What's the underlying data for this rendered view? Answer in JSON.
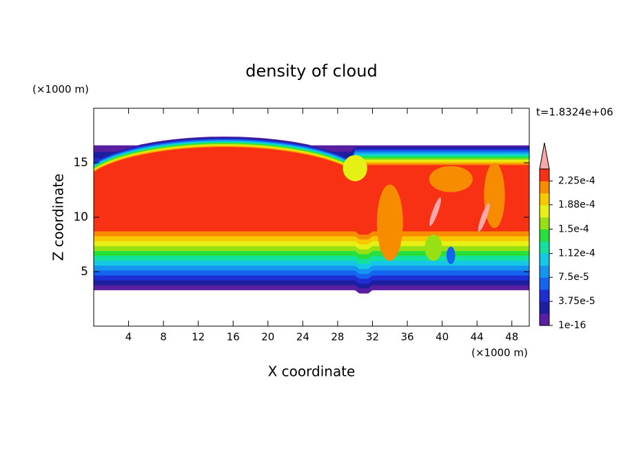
{
  "chart_data": {
    "type": "contour",
    "title": "density of cloud",
    "x_label": "X coordinate",
    "y_label": "Z coordinate",
    "x_unit": "(×1000 m)",
    "y_unit": "(×1000 m)",
    "time_label": "t=1.8324e+06",
    "xlim": [
      0,
      50
    ],
    "ylim": [
      0,
      20
    ],
    "xticks": [
      4,
      8,
      12,
      16,
      20,
      24,
      28,
      32,
      36,
      40,
      44,
      48
    ],
    "yticks": [
      5,
      10,
      15
    ],
    "colorbar": {
      "clim": [
        1e-16,
        0.00024375
      ],
      "ticks": [
        {
          "value": 1e-16,
          "label": "1e-16"
        },
        {
          "value": 3.75e-05,
          "label": "3.75e-5"
        },
        {
          "value": 7.5e-05,
          "label": "7.5e-5"
        },
        {
          "value": 0.000112,
          "label": "1.12e-4"
        },
        {
          "value": 0.00015,
          "label": "1.5e-4"
        },
        {
          "value": 0.000188,
          "label": "1.88e-4"
        },
        {
          "value": 0.000225,
          "label": "2.25e-4"
        }
      ],
      "colors": [
        "#5a1ea0",
        "#1e1ea0",
        "#1e2ed2",
        "#1464f0",
        "#1496f0",
        "#14c8e6",
        "#14e0a0",
        "#28e03c",
        "#96e014",
        "#e6f014",
        "#f8c800",
        "#f88c00",
        "#f83014"
      ],
      "extend_color": "#f8a8a8"
    }
  }
}
